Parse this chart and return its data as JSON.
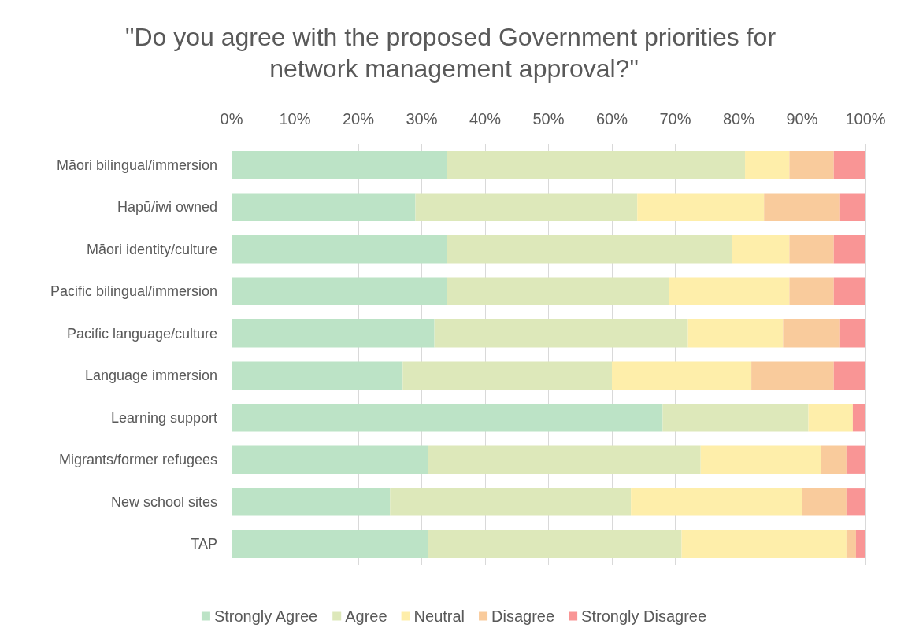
{
  "chart_data": {
    "type": "bar",
    "orientation": "horizontal",
    "stacked": true,
    "title": "\"Do you agree with the proposed Government priorities for network management approval?\"",
    "categories": [
      "Māori bilingual/immersion",
      "Hapū/iwi owned",
      "Māori identity/culture",
      "Pacific bilingual/immersion",
      "Pacific language/culture",
      "Language immersion",
      "Learning support",
      "Migrants/former refugees",
      "New school sites",
      "TAP"
    ],
    "series": [
      {
        "name": "Strongly Agree",
        "color": "#bce3c6",
        "values": [
          34,
          29,
          34,
          34,
          32,
          27,
          68,
          31,
          25,
          31
        ]
      },
      {
        "name": "Agree",
        "color": "#dde8ba",
        "values": [
          47,
          35,
          45,
          35,
          40,
          33,
          23,
          43,
          38,
          40
        ]
      },
      {
        "name": "Neutral",
        "color": "#feeeaa",
        "values": [
          7,
          20,
          9,
          19,
          15,
          22,
          7,
          19,
          27,
          26
        ]
      },
      {
        "name": "Disagree",
        "color": "#f9cb9c",
        "values": [
          7,
          12,
          7,
          7,
          9,
          13,
          0,
          4,
          7,
          1.5
        ]
      },
      {
        "name": "Strongly Disagree",
        "color": "#f99595",
        "values": [
          5,
          4,
          5,
          5,
          4,
          5,
          2,
          3,
          3,
          1.5
        ]
      }
    ],
    "xlim": [
      0,
      100
    ],
    "xticks": [
      {
        "value": 0,
        "label": "0%"
      },
      {
        "value": 10,
        "label": "10%"
      },
      {
        "value": 20,
        "label": "20%"
      },
      {
        "value": 30,
        "label": "30%"
      },
      {
        "value": 40,
        "label": "40%"
      },
      {
        "value": 50,
        "label": "50%"
      },
      {
        "value": 60,
        "label": "60%"
      },
      {
        "value": 70,
        "label": "70%"
      },
      {
        "value": 80,
        "label": "80%"
      },
      {
        "value": 90,
        "label": "90%"
      },
      {
        "value": 100,
        "label": "100%"
      }
    ],
    "grid": "x",
    "legend": "bottom"
  }
}
